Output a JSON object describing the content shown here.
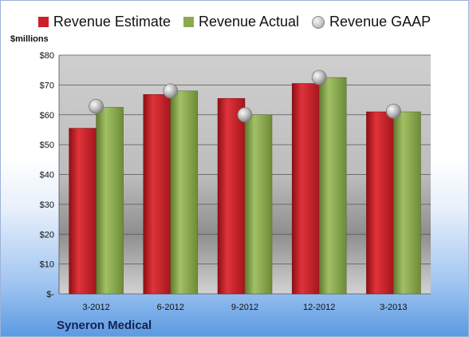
{
  "colors": {
    "estimate": "#cc1f27",
    "actual": "#8cab4f",
    "gaap": "#c4c4c4"
  },
  "legend": [
    {
      "label": "Revenue Estimate",
      "swatch": "square",
      "color": "#cc1f27"
    },
    {
      "label": "Revenue Actual",
      "swatch": "square",
      "color": "#8cab4f"
    },
    {
      "label": "Revenue GAAP",
      "swatch": "circle",
      "color": "#c4c4c4"
    }
  ],
  "unit_label": "$millions",
  "company": "Syneron Medical",
  "chart_data": {
    "type": "bar",
    "categories": [
      "3-2012",
      "6-2012",
      "9-2012",
      "12-2012",
      "3-2013"
    ],
    "series": [
      {
        "name": "Revenue Estimate",
        "values": [
          55.5,
          66.8,
          65.5,
          70.5,
          61.0
        ]
      },
      {
        "name": "Revenue Actual",
        "values": [
          62.5,
          68.0,
          60.0,
          72.5,
          61.0
        ]
      },
      {
        "name": "Revenue GAAP",
        "type": "scatter",
        "values": [
          62.8,
          68.0,
          60.0,
          72.5,
          61.2
        ]
      }
    ],
    "ylim": [
      0,
      80
    ],
    "yticks": [
      0,
      10,
      20,
      30,
      40,
      50,
      60,
      70,
      80
    ],
    "ytick_labels": [
      "$-",
      "$10",
      "$20",
      "$30",
      "$40",
      "$50",
      "$60",
      "$70",
      "$80"
    ],
    "ylabel": "$millions",
    "grid": true,
    "legend_position": "top"
  }
}
